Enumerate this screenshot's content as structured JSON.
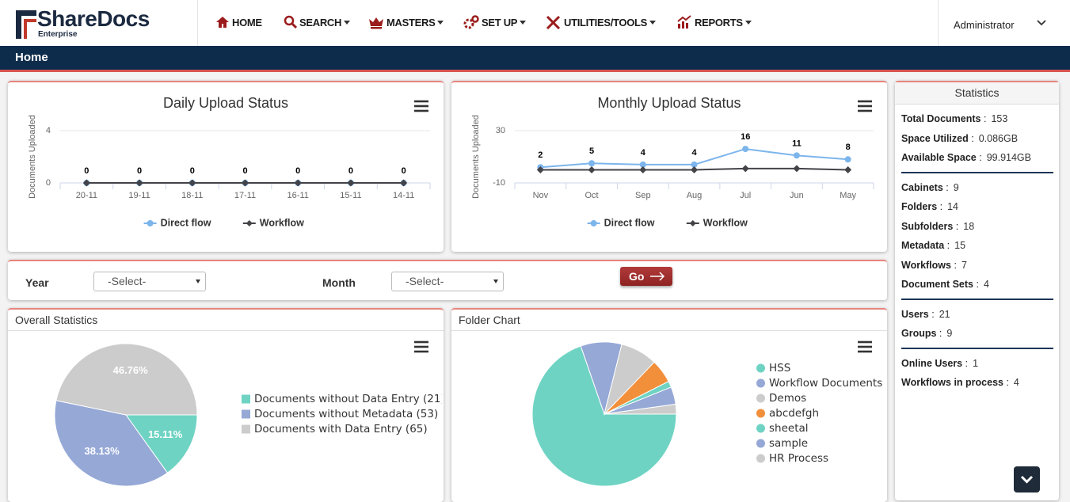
{
  "header": {
    "logo": "ShareDocs",
    "logo_tagline": "Enterprise",
    "nav": [
      "HOME",
      "SEARCH",
      "MASTERS",
      "SET UP",
      "UTILITIES/TOOLS",
      "REPORTS"
    ],
    "user": "Administrator"
  },
  "breadcrumb": "Home",
  "filter": {
    "year_label": "Year",
    "year_placeholder": "-Select-",
    "month_label": "Month",
    "month_placeholder": "-Select-",
    "button": "Go"
  },
  "statistics": {
    "title": "Statistics",
    "groups": [
      [
        {
          "label": "Total Documents",
          "value": 153
        },
        {
          "label": "Space Utilized",
          "value": "0.086GB"
        },
        {
          "label": "Available Space",
          "value": "99.914GB"
        }
      ],
      [
        {
          "label": "Cabinets",
          "value": 9
        },
        {
          "label": "Folders",
          "value": 14
        },
        {
          "label": "Subfolders",
          "value": 18
        },
        {
          "label": "Metadata",
          "value": 15
        },
        {
          "label": "Workflows",
          "value": 7
        },
        {
          "label": "Document Sets",
          "value": 4
        }
      ],
      [
        {
          "label": "Users",
          "value": 21
        },
        {
          "label": "Groups",
          "value": 9
        }
      ],
      [
        {
          "label": "Online Users",
          "value": 1
        },
        {
          "label": "Workflows in process",
          "value": 4
        }
      ]
    ]
  },
  "chart_data": [
    {
      "type": "line",
      "title": "Daily Upload Status",
      "y_label": "Documents Uploaded",
      "categories": [
        "20-11",
        "19-11",
        "18-11",
        "17-11",
        "16-11",
        "15-11",
        "14-11"
      ],
      "series": [
        {
          "name": "Direct flow",
          "color": "#7cb5ec",
          "marker": "circle",
          "data_labels": true,
          "values": [
            0,
            0,
            0,
            0,
            0,
            0,
            0
          ]
        },
        {
          "name": "Workflow",
          "color": "#434348",
          "marker": "diamond",
          "values": [
            0,
            0,
            0,
            0,
            0,
            0,
            0
          ]
        }
      ],
      "ylim": [
        0,
        4
      ],
      "yticks": [
        0,
        4
      ],
      "grid": true,
      "legend": "bottom"
    },
    {
      "type": "line",
      "title": "Monthly Upload Status",
      "y_label": "Documents Uploaded",
      "categories": [
        "Nov",
        "Oct",
        "Sep",
        "Aug",
        "Jul",
        "Jun",
        "May"
      ],
      "series": [
        {
          "name": "Direct flow",
          "color": "#7cb5ec",
          "marker": "circle",
          "data_labels": true,
          "values": [
            2,
            5,
            4,
            4,
            16,
            11,
            8
          ]
        },
        {
          "name": "Workflow",
          "color": "#434348",
          "marker": "diamond",
          "values": [
            0,
            0,
            0,
            0,
            1,
            1,
            0
          ]
        }
      ],
      "ylim": [
        -10,
        30
      ],
      "yticks": [
        -10,
        30
      ],
      "grid": true,
      "legend": "bottom"
    },
    {
      "type": "pie",
      "title": "Overall Statistics",
      "categories": [
        "Documents without Data Entry (21)",
        "Documents without Metadata (53)",
        "Documents with Data Entry (65)"
      ],
      "values": [
        15.11,
        38.13,
        46.76
      ],
      "value_labels": [
        "15.11%",
        "38.13%",
        "46.76%"
      ],
      "colors": [
        "#6fd3c3",
        "#95a8d6",
        "#cccccc"
      ],
      "legend": "right",
      "legend_symbol": "square"
    },
    {
      "type": "pie",
      "title": "Folder Chart",
      "categories": [
        "HSS",
        "Workflow Documents",
        "Demos",
        "abcdefgh",
        "sheetal",
        "sample",
        "HR Process"
      ],
      "values": [
        69.7,
        9.2,
        8.3,
        5.3,
        1.4,
        3.9,
        2.2
      ],
      "colors": [
        "#6fd3c3",
        "#95a8d6",
        "#cccccc",
        "#f28f3b",
        "#6fd3c3",
        "#95a8d6",
        "#cccccc"
      ],
      "legend": "right",
      "legend_symbol": "circle"
    }
  ]
}
